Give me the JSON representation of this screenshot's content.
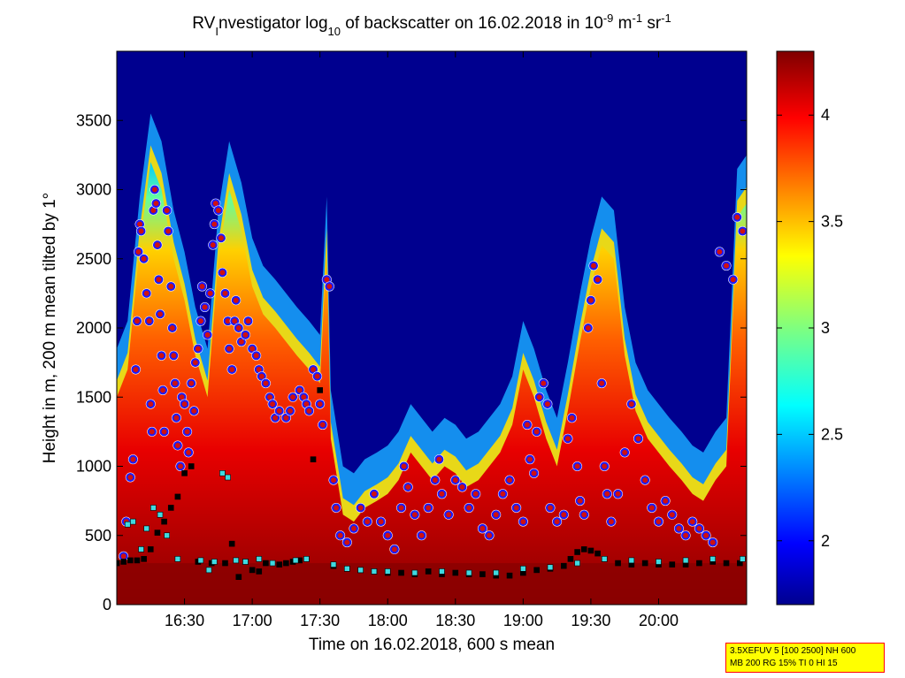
{
  "title": {
    "main": "RV",
    "sub1": "I",
    "part2": "nvestigator log",
    "sub2": "10",
    "part3": " of backscatter on 16.02.2018 in 10",
    "sup1": "-9",
    "part4": " m",
    "sup2": "-1",
    "part5": " sr",
    "sup3": "-1"
  },
  "settings_box": {
    "line1": "3.5XEFUV 5 [100 2500] NH 600",
    "line2": "MB 200 RG 15% TI 0 HI 15"
  },
  "colors": {
    "background_field": "#00008f",
    "cloud_marker_fill": "#d01010",
    "cloud_marker_ring": "#1a1aff",
    "cloud_marker_halo": "#ffffff",
    "mlh_marker": "#000000",
    "aerosol_marker": "#3fd9e0"
  },
  "chart_data": {
    "type": "heatmap",
    "xlabel": "Time on 16.02.2018, 600 s mean",
    "ylabel": "Height in m, 200 m mean tilted by 1°",
    "x_ticks": [
      "16:30",
      "17:00",
      "17:30",
      "18:00",
      "18:30",
      "19:00",
      "19:30",
      "20:00"
    ],
    "x_tick_hours": [
      16.5,
      17.0,
      17.5,
      18.0,
      18.5,
      19.0,
      19.5,
      20.0
    ],
    "xlim_hours": [
      16.0,
      20.65
    ],
    "y_ticks": [
      "0",
      "500",
      "1000",
      "1500",
      "2000",
      "2500",
      "3000",
      "3500"
    ],
    "y_tick_values": [
      0,
      500,
      1000,
      1500,
      2000,
      2500,
      3000,
      3500
    ],
    "ylim": [
      0,
      4000
    ],
    "colorbar": {
      "colormap": "jet",
      "range": [
        1.7,
        4.3
      ],
      "tick_labels": [
        "2",
        "2.5",
        "3",
        "3.5",
        "4"
      ],
      "tick_values": [
        2.0,
        2.5,
        3.0,
        3.5,
        4.0
      ]
    },
    "aerosol_top_profile": {
      "hours": [
        16.0,
        16.08,
        16.17,
        16.25,
        16.33,
        16.42,
        16.5,
        16.58,
        16.67,
        16.75,
        16.83,
        16.92,
        17.0,
        17.08,
        17.17,
        17.25,
        17.33,
        17.42,
        17.5,
        17.55,
        17.58,
        17.67,
        17.75,
        17.83,
        17.92,
        18.0,
        18.08,
        18.17,
        18.25,
        18.33,
        18.42,
        18.5,
        18.58,
        18.67,
        18.75,
        18.83,
        18.92,
        19.0,
        19.08,
        19.17,
        19.25,
        19.33,
        19.42,
        19.5,
        19.58,
        19.67,
        19.75,
        19.83,
        19.92,
        20.0,
        20.08,
        20.17,
        20.25,
        20.33,
        20.42,
        20.5,
        20.58,
        20.65
      ],
      "top_m": [
        1500,
        1700,
        2600,
        3200,
        3000,
        2500,
        2200,
        1800,
        1500,
        2500,
        3000,
        2700,
        2300,
        2100,
        2000,
        1900,
        1800,
        1700,
        1600,
        2600,
        1200,
        650,
        600,
        700,
        750,
        800,
        900,
        1100,
        1000,
        900,
        1000,
        950,
        850,
        900,
        1000,
        1100,
        1300,
        1700,
        1500,
        1200,
        1000,
        1400,
        1900,
        2300,
        2600,
        2500,
        1800,
        1400,
        1200,
        1100,
        1000,
        900,
        800,
        750,
        900,
        1000,
        2800,
        2900
      ]
    },
    "series": [
      {
        "name": "cloud_base",
        "marker": "circle",
        "points": [
          [
            16.05,
            350
          ],
          [
            16.07,
            600
          ],
          [
            16.1,
            920
          ],
          [
            16.12,
            1050
          ],
          [
            16.14,
            1700
          ],
          [
            16.15,
            2050
          ],
          [
            16.16,
            2550
          ],
          [
            16.17,
            2750
          ],
          [
            16.18,
            2700
          ],
          [
            16.2,
            2500
          ],
          [
            16.22,
            2250
          ],
          [
            16.24,
            2050
          ],
          [
            16.25,
            1450
          ],
          [
            16.26,
            1250
          ],
          [
            16.27,
            2850
          ],
          [
            16.28,
            3000
          ],
          [
            16.29,
            2900
          ],
          [
            16.3,
            2600
          ],
          [
            16.31,
            2350
          ],
          [
            16.32,
            2100
          ],
          [
            16.33,
            1800
          ],
          [
            16.34,
            1550
          ],
          [
            16.35,
            1250
          ],
          [
            16.37,
            2850
          ],
          [
            16.38,
            2700
          ],
          [
            16.4,
            2300
          ],
          [
            16.41,
            2000
          ],
          [
            16.42,
            1800
          ],
          [
            16.43,
            1600
          ],
          [
            16.44,
            1350
          ],
          [
            16.45,
            1150
          ],
          [
            16.47,
            1000
          ],
          [
            16.48,
            1500
          ],
          [
            16.5,
            1450
          ],
          [
            16.52,
            1250
          ],
          [
            16.53,
            1100
          ],
          [
            16.55,
            1600
          ],
          [
            16.57,
            1400
          ],
          [
            16.58,
            1750
          ],
          [
            16.6,
            1850
          ],
          [
            16.62,
            2050
          ],
          [
            16.63,
            2300
          ],
          [
            16.65,
            2150
          ],
          [
            16.67,
            1950
          ],
          [
            16.69,
            2250
          ],
          [
            16.71,
            2600
          ],
          [
            16.72,
            2750
          ],
          [
            16.73,
            2900
          ],
          [
            16.75,
            2850
          ],
          [
            16.77,
            2650
          ],
          [
            16.78,
            2400
          ],
          [
            16.8,
            2250
          ],
          [
            16.82,
            2050
          ],
          [
            16.83,
            1850
          ],
          [
            16.85,
            1700
          ],
          [
            16.87,
            2050
          ],
          [
            16.88,
            2200
          ],
          [
            16.9,
            2000
          ],
          [
            16.92,
            1900
          ],
          [
            16.95,
            1950
          ],
          [
            16.97,
            2050
          ],
          [
            17.0,
            1850
          ],
          [
            17.03,
            1800
          ],
          [
            17.05,
            1700
          ],
          [
            17.07,
            1650
          ],
          [
            17.1,
            1600
          ],
          [
            17.13,
            1500
          ],
          [
            17.15,
            1450
          ],
          [
            17.17,
            1350
          ],
          [
            17.2,
            1400
          ],
          [
            17.25,
            1350
          ],
          [
            17.28,
            1400
          ],
          [
            17.3,
            1500
          ],
          [
            17.35,
            1550
          ],
          [
            17.38,
            1500
          ],
          [
            17.4,
            1450
          ],
          [
            17.42,
            1400
          ],
          [
            17.45,
            1700
          ],
          [
            17.48,
            1650
          ],
          [
            17.5,
            1450
          ],
          [
            17.52,
            1300
          ],
          [
            17.55,
            2350
          ],
          [
            17.57,
            2300
          ],
          [
            17.6,
            900
          ],
          [
            17.62,
            700
          ],
          [
            17.65,
            500
          ],
          [
            17.7,
            450
          ],
          [
            17.75,
            550
          ],
          [
            17.8,
            700
          ],
          [
            17.85,
            600
          ],
          [
            17.9,
            800
          ],
          [
            17.95,
            600
          ],
          [
            18.0,
            500
          ],
          [
            18.05,
            400
          ],
          [
            18.1,
            700
          ],
          [
            18.12,
            1000
          ],
          [
            18.15,
            850
          ],
          [
            18.2,
            650
          ],
          [
            18.25,
            500
          ],
          [
            18.3,
            700
          ],
          [
            18.35,
            900
          ],
          [
            18.38,
            1050
          ],
          [
            18.4,
            800
          ],
          [
            18.45,
            650
          ],
          [
            18.5,
            900
          ],
          [
            18.55,
            850
          ],
          [
            18.6,
            700
          ],
          [
            18.65,
            800
          ],
          [
            18.7,
            550
          ],
          [
            18.75,
            500
          ],
          [
            18.8,
            650
          ],
          [
            18.85,
            800
          ],
          [
            18.9,
            900
          ],
          [
            18.95,
            700
          ],
          [
            19.0,
            600
          ],
          [
            19.03,
            1300
          ],
          [
            19.05,
            1050
          ],
          [
            19.08,
            950
          ],
          [
            19.1,
            1250
          ],
          [
            19.12,
            1500
          ],
          [
            19.15,
            1600
          ],
          [
            19.18,
            1450
          ],
          [
            19.2,
            700
          ],
          [
            19.25,
            600
          ],
          [
            19.3,
            650
          ],
          [
            19.33,
            1200
          ],
          [
            19.36,
            1350
          ],
          [
            19.4,
            1000
          ],
          [
            19.42,
            750
          ],
          [
            19.45,
            650
          ],
          [
            19.48,
            2000
          ],
          [
            19.5,
            2200
          ],
          [
            19.52,
            2450
          ],
          [
            19.55,
            2350
          ],
          [
            19.58,
            1600
          ],
          [
            19.6,
            1000
          ],
          [
            19.62,
            800
          ],
          [
            19.65,
            600
          ],
          [
            19.7,
            800
          ],
          [
            19.75,
            1100
          ],
          [
            19.8,
            1450
          ],
          [
            19.85,
            1200
          ],
          [
            19.9,
            900
          ],
          [
            19.95,
            700
          ],
          [
            20.0,
            600
          ],
          [
            20.05,
            750
          ],
          [
            20.1,
            650
          ],
          [
            20.15,
            550
          ],
          [
            20.2,
            500
          ],
          [
            20.25,
            600
          ],
          [
            20.3,
            550
          ],
          [
            20.35,
            500
          ],
          [
            20.4,
            450
          ],
          [
            20.45,
            2550
          ],
          [
            20.5,
            2450
          ],
          [
            20.55,
            2350
          ],
          [
            20.58,
            2800
          ],
          [
            20.62,
            2700
          ]
        ]
      },
      {
        "name": "mixing_layer",
        "marker": "square",
        "points": [
          [
            16.0,
            300
          ],
          [
            16.05,
            310
          ],
          [
            16.1,
            320
          ],
          [
            16.15,
            320
          ],
          [
            16.2,
            330
          ],
          [
            16.25,
            400
          ],
          [
            16.3,
            520
          ],
          [
            16.35,
            600
          ],
          [
            16.4,
            700
          ],
          [
            16.45,
            780
          ],
          [
            16.5,
            950
          ],
          [
            16.55,
            1000
          ],
          [
            16.6,
            310
          ],
          [
            16.7,
            300
          ],
          [
            16.8,
            300
          ],
          [
            16.85,
            440
          ],
          [
            16.9,
            200
          ],
          [
            16.95,
            310
          ],
          [
            17.0,
            250
          ],
          [
            17.05,
            240
          ],
          [
            17.1,
            300
          ],
          [
            17.2,
            290
          ],
          [
            17.25,
            300
          ],
          [
            17.3,
            310
          ],
          [
            17.35,
            320
          ],
          [
            17.4,
            330
          ],
          [
            17.45,
            1050
          ],
          [
            17.5,
            1550
          ],
          [
            17.6,
            280
          ],
          [
            17.7,
            260
          ],
          [
            17.8,
            250
          ],
          [
            17.9,
            240
          ],
          [
            18.0,
            230
          ],
          [
            18.1,
            230
          ],
          [
            18.2,
            220
          ],
          [
            18.3,
            240
          ],
          [
            18.4,
            220
          ],
          [
            18.5,
            230
          ],
          [
            18.6,
            220
          ],
          [
            18.7,
            220
          ],
          [
            18.8,
            210
          ],
          [
            18.9,
            210
          ],
          [
            19.0,
            230
          ],
          [
            19.1,
            250
          ],
          [
            19.2,
            260
          ],
          [
            19.3,
            280
          ],
          [
            19.35,
            330
          ],
          [
            19.4,
            380
          ],
          [
            19.45,
            400
          ],
          [
            19.5,
            390
          ],
          [
            19.55,
            370
          ],
          [
            19.6,
            330
          ],
          [
            19.7,
            300
          ],
          [
            19.8,
            290
          ],
          [
            19.9,
            300
          ],
          [
            20.0,
            290
          ],
          [
            20.1,
            290
          ],
          [
            20.2,
            290
          ],
          [
            20.3,
            300
          ],
          [
            20.4,
            310
          ],
          [
            20.5,
            300
          ],
          [
            20.6,
            300
          ]
        ]
      },
      {
        "name": "aerosol_layer",
        "marker": "square",
        "points": [
          [
            16.08,
            580
          ],
          [
            16.12,
            600
          ],
          [
            16.18,
            400
          ],
          [
            16.22,
            550
          ],
          [
            16.27,
            700
          ],
          [
            16.32,
            650
          ],
          [
            16.37,
            500
          ],
          [
            16.45,
            330
          ],
          [
            16.62,
            320
          ],
          [
            16.68,
            250
          ],
          [
            16.72,
            310
          ],
          [
            16.78,
            950
          ],
          [
            16.82,
            920
          ],
          [
            16.88,
            320
          ],
          [
            16.95,
            310
          ],
          [
            17.05,
            330
          ],
          [
            17.15,
            300
          ],
          [
            17.32,
            320
          ],
          [
            17.4,
            330
          ],
          [
            17.6,
            290
          ],
          [
            17.7,
            260
          ],
          [
            17.8,
            250
          ],
          [
            17.9,
            240
          ],
          [
            18.0,
            240
          ],
          [
            18.2,
            230
          ],
          [
            18.4,
            240
          ],
          [
            18.6,
            230
          ],
          [
            18.8,
            230
          ],
          [
            19.0,
            260
          ],
          [
            19.2,
            270
          ],
          [
            19.4,
            300
          ],
          [
            19.6,
            330
          ],
          [
            19.8,
            320
          ],
          [
            20.0,
            310
          ],
          [
            20.2,
            320
          ],
          [
            20.4,
            330
          ],
          [
            20.62,
            330
          ]
        ]
      }
    ]
  }
}
